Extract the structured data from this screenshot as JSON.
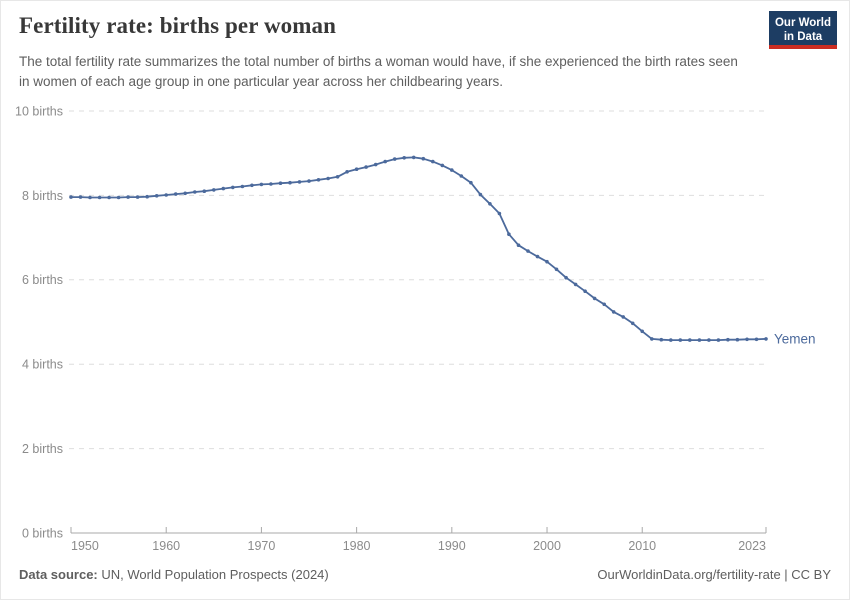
{
  "header": {
    "title": "Fertility rate: births per woman",
    "subtitle": "The total fertility rate summarizes the total number of births a woman would have, if she experienced the birth rates seen in women of each age group in one particular year across her childbearing years.",
    "logo": {
      "line1": "Our World",
      "line2": "in Data",
      "bg_color": "#1d3d63",
      "accent_color": "#cb2d22"
    }
  },
  "footer": {
    "source_label": "Data source:",
    "source_text": " UN, World Population Prospects (2024)",
    "license_text": "OurWorldinData.org/fertility-rate | CC BY"
  },
  "chart_data": {
    "type": "line",
    "title": "Fertility rate: births per woman",
    "entity_label": "Yemen",
    "line_color": "#4C6A9C",
    "grid": "horizontal-dashed",
    "legend_position": "end-of-line",
    "xlim": [
      1950,
      2023
    ],
    "ylim": [
      0,
      10
    ],
    "x_ticks": [
      1950,
      1960,
      1970,
      1980,
      1990,
      2000,
      2010,
      2023
    ],
    "y_ticks": [
      0,
      2,
      4,
      6,
      8,
      10
    ],
    "y_tick_suffix": " births",
    "x": [
      1950,
      1951,
      1952,
      1953,
      1954,
      1955,
      1956,
      1957,
      1958,
      1959,
      1960,
      1961,
      1962,
      1963,
      1964,
      1965,
      1966,
      1967,
      1968,
      1969,
      1970,
      1971,
      1972,
      1973,
      1974,
      1975,
      1976,
      1977,
      1978,
      1979,
      1980,
      1981,
      1982,
      1983,
      1984,
      1985,
      1986,
      1987,
      1988,
      1989,
      1990,
      1991,
      1992,
      1993,
      1994,
      1995,
      1996,
      1997,
      1998,
      1999,
      2000,
      2001,
      2002,
      2003,
      2004,
      2005,
      2006,
      2007,
      2008,
      2009,
      2010,
      2011,
      2012,
      2013,
      2014,
      2015,
      2016,
      2017,
      2018,
      2019,
      2020,
      2021,
      2022,
      2023
    ],
    "series": [
      {
        "name": "Yemen",
        "values": [
          7.96,
          7.96,
          7.95,
          7.95,
          7.95,
          7.95,
          7.96,
          7.96,
          7.97,
          7.99,
          8.01,
          8.03,
          8.05,
          8.08,
          8.1,
          8.13,
          8.16,
          8.19,
          8.21,
          8.24,
          8.26,
          8.27,
          8.29,
          8.3,
          8.32,
          8.34,
          8.37,
          8.4,
          8.44,
          8.56,
          8.62,
          8.67,
          8.73,
          8.8,
          8.86,
          8.89,
          8.9,
          8.87,
          8.8,
          8.71,
          8.6,
          8.46,
          8.3,
          8.02,
          7.8,
          7.57,
          7.08,
          6.82,
          6.68,
          6.55,
          6.43,
          6.25,
          6.05,
          5.89,
          5.73,
          5.56,
          5.42,
          5.24,
          5.12,
          4.97,
          4.78,
          4.6,
          4.58,
          4.57,
          4.57,
          4.57,
          4.57,
          4.57,
          4.57,
          4.58,
          4.58,
          4.59,
          4.59,
          4.6
        ]
      }
    ]
  }
}
